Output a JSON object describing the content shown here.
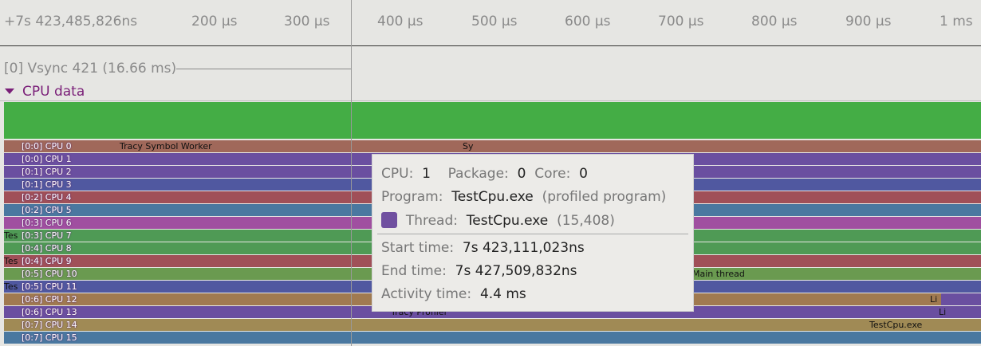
{
  "ruler": {
    "ticks": [
      "+7s 423,485,826ns",
      "200 µs",
      "300 µs",
      "400 µs",
      "500 µs",
      "600 µs",
      "700 µs",
      "800 µs",
      "900 µs",
      "1 ms"
    ]
  },
  "vsync": "[0] Vsync 421 (16.66 ms)",
  "section": "CPU data",
  "cpus": [
    "[0:0] CPU 0",
    "[0:0] CPU 1",
    "[0:1] CPU 2",
    "[0:1] CPU 3",
    "[0:2] CPU 4",
    "[0:2] CPU 5",
    "[0:3] CPU 6",
    "[0:3] CPU 7",
    "[0:4] CPU 8",
    "[0:4] CPU 9",
    "[0:5] CPU 10",
    "[0:5] CPU 11",
    "[0:6] CPU 12",
    "[0:6] CPU 13",
    "[0:7] CPU 14",
    "[0:7] CPU 15"
  ],
  "segments": [
    {
      "row": 0,
      "text": "Tracy Symbol Worker"
    },
    {
      "row": 0,
      "text": "Sy"
    },
    {
      "row": 7,
      "text": "Tes"
    },
    {
      "row": 9,
      "text": "Tes"
    },
    {
      "row": 10,
      "text": "Main thread"
    },
    {
      "row": 11,
      "text": "Tes"
    },
    {
      "row": 12,
      "text": "Li"
    },
    {
      "row": 13,
      "text": "Tracy Profiler"
    },
    {
      "row": 13,
      "text": "Li"
    },
    {
      "row": 14,
      "text": "TestCpu.exe"
    }
  ],
  "tooltip": {
    "cpu_label": "CPU:",
    "cpu": "1",
    "package_label": "Package:",
    "package": "0",
    "core_label": "Core:",
    "core": "0",
    "program_label": "Program:",
    "program": "TestCpu.exe",
    "program_note": "(profiled program)",
    "thread_label": "Thread:",
    "thread": "TestCpu.exe",
    "thread_id": "(15,408)",
    "start_label": "Start time:",
    "start": "7s 423,111,023ns",
    "end_label": "End time:",
    "end": "7s 427,509,832ns",
    "activity_label": "Activity time:",
    "activity": "4.4 ms"
  }
}
